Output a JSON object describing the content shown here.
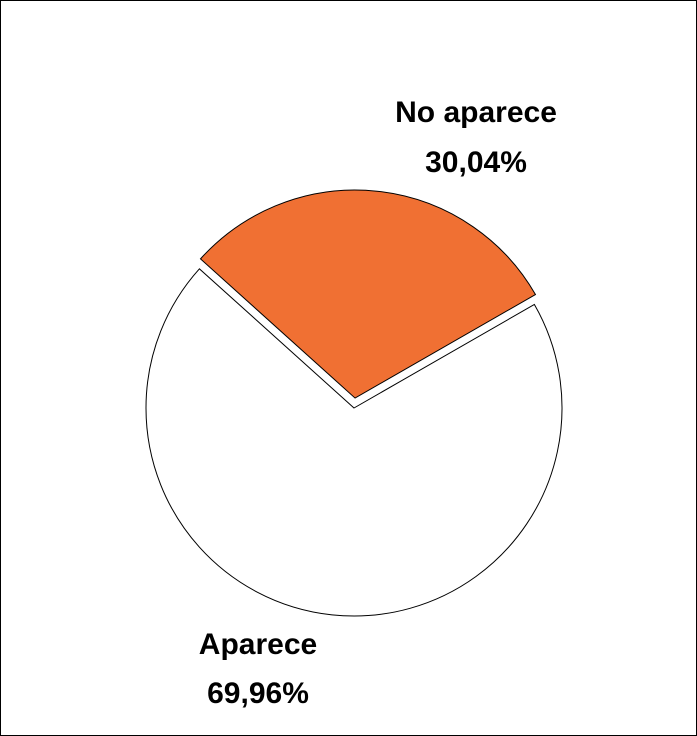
{
  "chart_data": {
    "type": "pie",
    "title": "",
    "slices": [
      {
        "label": "No aparece",
        "value_label": "30,04%",
        "value": 30.04,
        "color": "#F07033",
        "exploded": true
      },
      {
        "label": "Aparece",
        "value_label": "69,96%",
        "value": 69.96,
        "color": "#FFFFFF",
        "exploded": false
      }
    ],
    "legend": "none",
    "data_labels": "outside"
  }
}
